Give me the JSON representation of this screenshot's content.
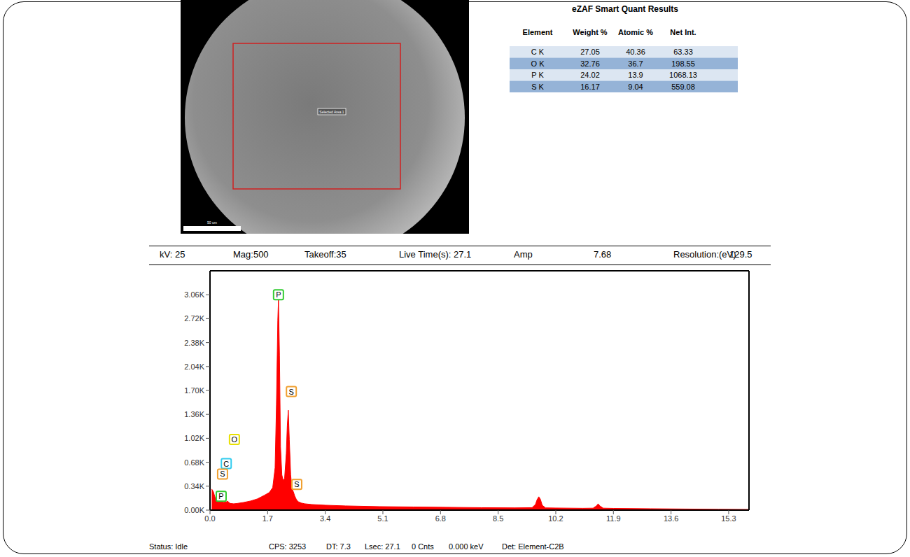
{
  "image": {
    "label": "Selected Area 1",
    "scale_bar": "50 um"
  },
  "table": {
    "title": "eZAF Smart Quant Results",
    "columns": [
      "Element",
      "Weight %",
      "Atomic %",
      "Net Int."
    ],
    "rows": [
      [
        "C K",
        "27.05",
        "40.36",
        "63.33"
      ],
      [
        "O K",
        "32.76",
        "36.7",
        "198.55"
      ],
      [
        "P K",
        "24.02",
        "13.9",
        "1068.13"
      ],
      [
        "S K",
        "16.17",
        "9.04",
        "559.08"
      ]
    ]
  },
  "info_bar": [
    "kV: 25",
    "Mag:500",
    "Takeoff:35",
    "Live Time(s): 27.1",
    "Amp",
    "7.68",
    "Resolution:(eV)",
    "129.5"
  ],
  "chart_data": {
    "type": "area",
    "color": "#ff0000",
    "x": [
      0.05,
      0.1,
      0.15,
      0.2,
      0.25,
      0.28,
      0.32,
      0.4,
      0.5,
      0.52,
      0.55,
      0.6,
      0.7,
      0.8,
      1.0,
      1.2,
      1.4,
      1.6,
      1.75,
      1.85,
      1.92,
      1.96,
      2.0,
      2.02,
      2.05,
      2.08,
      2.12,
      2.16,
      2.2,
      2.25,
      2.28,
      2.31,
      2.34,
      2.38,
      2.42,
      2.46,
      2.5,
      2.55,
      2.6,
      2.7,
      2.8,
      3.0,
      3.4,
      4.0,
      5.0,
      6.0,
      7.0,
      8.0,
      9.0,
      9.5,
      9.6,
      9.65,
      9.7,
      9.75,
      9.8,
      9.9,
      10.2,
      11.0,
      11.3,
      11.4,
      11.45,
      11.5,
      11.6,
      11.9,
      13.0,
      14.0,
      15.0,
      15.9
    ],
    "values": [
      300,
      260,
      180,
      150,
      170,
      200,
      160,
      110,
      120,
      130,
      110,
      95,
      90,
      95,
      110,
      130,
      160,
      210,
      250,
      320,
      600,
      1500,
      2700,
      3000,
      2200,
      900,
      500,
      420,
      450,
      800,
      1200,
      1420,
      1000,
      500,
      300,
      260,
      200,
      150,
      120,
      100,
      90,
      80,
      70,
      60,
      50,
      45,
      40,
      35,
      32,
      35,
      80,
      150,
      190,
      150,
      70,
      32,
      30,
      26,
      28,
      60,
      90,
      60,
      28,
      25,
      20,
      16,
      12,
      10
    ],
    "xlim": [
      0,
      15.9
    ],
    "xticks": [
      {
        "value": 0,
        "label": "0.0"
      },
      1.7,
      3.4,
      5.1,
      6.8,
      8.5,
      10.2,
      11.9,
      13.6,
      15.3
    ],
    "ylim": [
      0,
      3400
    ],
    "yticks": [
      {
        "value": 0,
        "label": "0.00K"
      },
      {
        "value": 340,
        "label": "0.34K"
      },
      {
        "value": 680,
        "label": "0.68K"
      },
      {
        "value": 1020,
        "label": "1.02K"
      },
      {
        "value": 1360,
        "label": "1.36K"
      },
      {
        "value": 1700,
        "label": "1.70K"
      },
      {
        "value": 2040,
        "label": "2.04K"
      },
      {
        "value": 2380,
        "label": "2.38K"
      },
      {
        "value": 2720,
        "label": "2.72K"
      },
      {
        "value": 3060,
        "label": "3.06K"
      }
    ],
    "grid": false,
    "annotations": [
      {
        "text": "P",
        "x": 2.02,
        "y": 3060,
        "color": "#33cc33"
      },
      {
        "text": "S",
        "x": 2.4,
        "y": 1685,
        "color": "#f0a030"
      },
      {
        "text": "S",
        "x": 2.56,
        "y": 365,
        "color": "#f0a030"
      },
      {
        "text": "O",
        "x": 0.72,
        "y": 1005,
        "color": "#e8e000"
      },
      {
        "text": "C",
        "x": 0.48,
        "y": 660,
        "color": "#33ccee"
      },
      {
        "text": "S",
        "x": 0.37,
        "y": 512,
        "color": "#f0a030"
      },
      {
        "text": "P",
        "x": 0.33,
        "y": 197,
        "color": "#33cc33"
      }
    ]
  },
  "status_bar": [
    "Status: Idle",
    "CPS: 3253",
    "DT: 7.3",
    "Lsec: 27.1",
    "0 Cnts",
    "0.000 keV",
    "Det: Element-C2B"
  ]
}
